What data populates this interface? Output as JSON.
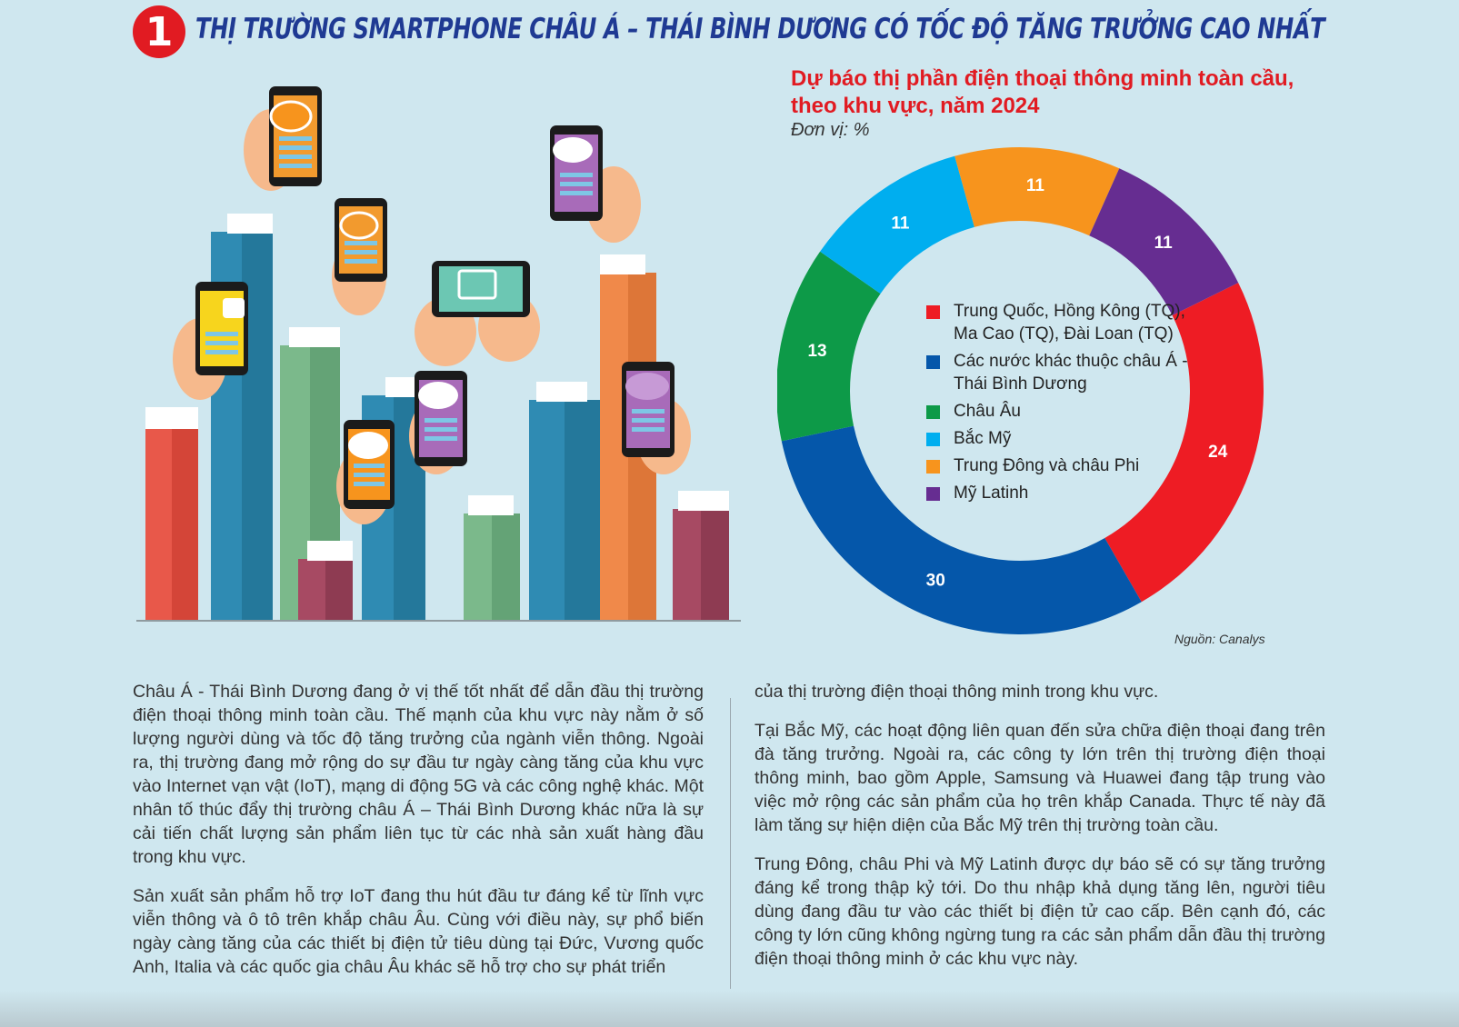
{
  "header": {
    "number": "1",
    "title": "THỊ TRƯỜNG SMARTPHONE CHÂU Á – THÁI BÌNH DƯƠNG CÓ TỐC ĐỘ TĂNG TRƯỞNG CAO NHẤT"
  },
  "chart_data": {
    "type": "pie",
    "title_line1": "Dự báo thị phần điện thoại thông minh toàn cầu,",
    "title_line2": "theo khu vực, năm 2024",
    "unit": "Đơn vị: %",
    "source": "Nguồn: Canalys",
    "legend_position": "center",
    "slices": [
      {
        "name": "Trung Quốc, Hồng Kông (TQ), Ma Cao (TQ), Đài Loan (TQ)",
        "value": 24,
        "color": "#ee1c24"
      },
      {
        "name": "Các nước khác thuộc châu Á - Thái Bình Dương",
        "value": 30,
        "color": "#0557aa"
      },
      {
        "name": "Châu Âu",
        "value": 13,
        "color": "#0d9a48"
      },
      {
        "name": "Bắc Mỹ",
        "value": 11,
        "color": "#00aeef"
      },
      {
        "name": "Trung Đông và châu Phi",
        "value": 11,
        "color": "#f7941d"
      },
      {
        "name": "Mỹ Latinh",
        "value": 11,
        "color": "#662d91"
      }
    ]
  },
  "article": {
    "left": [
      "Châu Á - Thái Bình Dương đang ở vị thế tốt nhất để dẫn đầu thị trường điện thoại thông minh toàn cầu. Thế mạnh của khu vực này nằm ở số lượng người dùng và tốc độ tăng trưởng của ngành viễn thông. Ngoài ra, thị trường đang mở rộng do sự đầu tư ngày càng tăng của khu vực vào Internet vạn vật (IoT), mạng di động 5G và các công nghệ khác. Một nhân tố thúc đẩy thị trường châu Á – Thái Bình Dương khác nữa là sự cải tiến chất lượng sản phẩm liên tục từ các nhà sản xuất hàng đầu trong khu vực.",
      "Sản xuất sản phẩm hỗ trợ IoT đang thu hút đầu tư đáng kể từ lĩnh vực viễn thông và ô tô trên khắp châu Âu. Cùng với điều này, sự phổ biến ngày càng tăng của các thiết bị điện tử tiêu dùng tại Đức, Vương quốc Anh, Italia và các quốc gia châu Âu khác sẽ hỗ trợ cho sự phát triển"
    ],
    "right": [
      "của thị trường điện thoại thông minh trong khu vực.",
      "Tại Bắc Mỹ, các hoạt động liên quan đến sửa chữa điện thoại đang trên đà tăng trưởng. Ngoài ra, các công ty lớn trên thị trường điện thoại thông minh, bao gồm Apple, Samsung và Huawei đang tập trung vào việc mở rộng các sản phẩm của họ trên khắp Canada. Thực tế này đã làm tăng sự hiện diện của Bắc Mỹ trên thị trường toàn cầu.",
      "Trung Đông, châu Phi và Mỹ Latinh được dự báo sẽ có sự tăng trưởng đáng kể trong thập kỷ tới. Do thu nhập khả dụng tăng lên, người tiêu dùng đang đầu tư vào các thiết bị điện tử cao cấp. Bên cạnh đó, các công ty lớn cũng không ngừng tung ra các sản phẩm dẫn đầu thị trường điện thoại thông minh ở các khu vực này."
    ]
  }
}
